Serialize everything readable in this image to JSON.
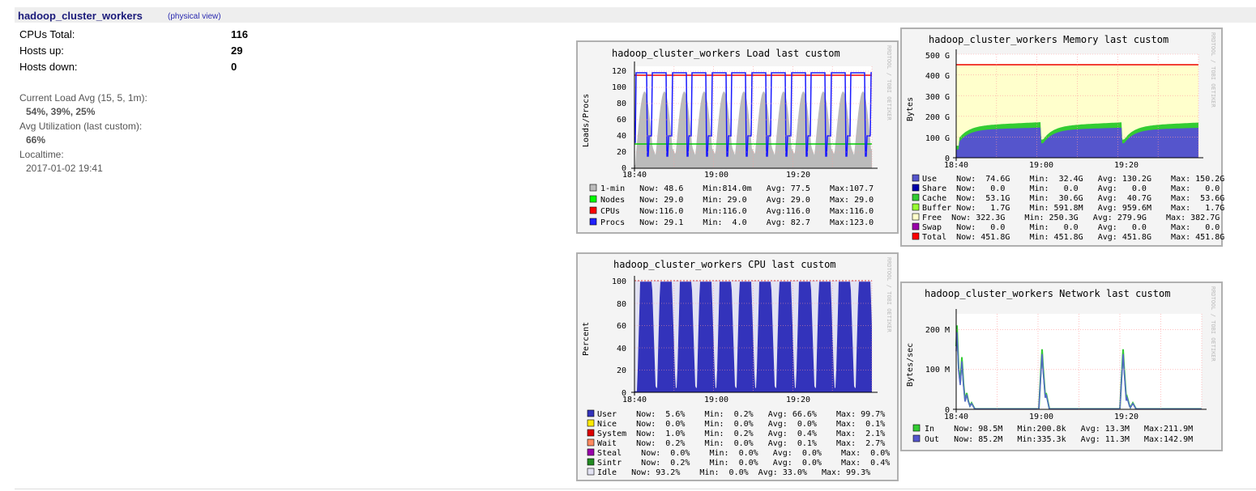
{
  "header": {
    "cluster_name": "hadoop_cluster_workers",
    "view_link": "(physical view)"
  },
  "summary": {
    "cpus_total_label": "CPUs Total:",
    "cpus_total_value": "116",
    "hosts_up_label": "Hosts up:",
    "hosts_up_value": "29",
    "hosts_down_label": "Hosts down:",
    "hosts_down_value": "0"
  },
  "meta": {
    "load_label": "Current Load Avg (15, 5, 1m):",
    "load_value": "54%, 39%, 25%",
    "util_label": "Avg Utilization (last custom):",
    "util_value": "66%",
    "localtime_label": "Localtime:",
    "localtime_value": "2017-01-02 19:41"
  },
  "watermark": "RRDTOOL / TOBI OETIKER",
  "graphs": {
    "load": {
      "title": "hadoop_cluster_workers Load last custom",
      "ylabel": "Loads/Procs",
      "yticks": [
        "0",
        "20",
        "40",
        "60",
        "80",
        "100",
        "120"
      ],
      "xticks": [
        "18:40",
        "19:00",
        "19:20"
      ],
      "legend": [
        {
          "color": "#bbbbbb",
          "text": "1-min   Now: 48.6    Min:814.0m   Avg: 77.5    Max:107.7"
        },
        {
          "color": "#00ff00",
          "text": "Nodes   Now: 29.0    Min: 29.0    Avg: 29.0    Max: 29.0"
        },
        {
          "color": "#ff0000",
          "text": "CPUs    Now:116.0    Min:116.0    Avg:116.0    Max:116.0"
        },
        {
          "color": "#2020ff",
          "text": "Procs   Now: 29.1    Min:  4.0    Avg: 82.7    Max:123.0"
        }
      ]
    },
    "memory": {
      "title": "hadoop_cluster_workers Memory last custom",
      "ylabel": "Bytes",
      "yticks": [
        "0",
        "100 G",
        "200 G",
        "300 G",
        "400 G",
        "500 G"
      ],
      "xticks": [
        "18:40",
        "19:00",
        "19:20"
      ],
      "legend": [
        {
          "color": "#5555cc",
          "text": "Use    Now:  74.6G    Min:  32.4G   Avg: 130.2G    Max: 150.2G"
        },
        {
          "color": "#0000aa",
          "text": "Share  Now:   0.0     Min:   0.0    Avg:   0.0     Max:   0.0"
        },
        {
          "color": "#33cc33",
          "text": "Cache  Now:  53.1G    Min:  30.6G   Avg:  40.7G    Max:  53.6G"
        },
        {
          "color": "#99ff33",
          "text": "Buffer Now:   1.7G    Min: 591.8M   Avg: 959.6M    Max:   1.7G"
        },
        {
          "color": "#ffffcc",
          "text": "Free  Now: 322.3G    Min: 250.3G   Avg: 279.9G    Max: 382.7G"
        },
        {
          "color": "#9900aa",
          "text": "Swap   Now:   0.0     Min:   0.0    Avg:   0.0     Max:   0.0"
        },
        {
          "color": "#ff0000",
          "text": "Total  Now: 451.8G    Min: 451.8G   Avg: 451.8G    Max: 451.8G"
        }
      ]
    },
    "cpu": {
      "title": "hadoop_cluster_workers CPU last custom",
      "ylabel": "Percent",
      "yticks": [
        "0",
        "20",
        "40",
        "60",
        "80",
        "100"
      ],
      "xticks": [
        "18:40",
        "19:00",
        "19:20"
      ],
      "legend": [
        {
          "color": "#3333bb",
          "text": "User    Now:  5.6%    Min:  0.2%   Avg: 66.6%    Max: 99.7%"
        },
        {
          "color": "#ffea00",
          "text": "Nice    Now:  0.0%    Min:  0.0%   Avg:  0.0%    Max:  0.1%"
        },
        {
          "color": "#dd0000",
          "text": "System  Now:  1.0%    Min:  0.2%   Avg:  0.4%    Max:  2.1%"
        },
        {
          "color": "#ff8a60",
          "text": "Wait    Now:  0.2%    Min:  0.0%   Avg:  0.1%    Max:  2.7%"
        },
        {
          "color": "#9900aa",
          "text": "Steal    Now:  0.0%    Min:  0.0%   Avg:  0.0%    Max:  0.0%"
        },
        {
          "color": "#228B22",
          "text": "Sintr    Now:  0.2%    Min:  0.0%   Avg:  0.0%    Max:  0.4%"
        },
        {
          "color": "#e2e2f2",
          "text": "Idle   Now: 93.2%    Min:  0.0%  Avg: 33.0%   Max: 99.3%"
        }
      ]
    },
    "network": {
      "title": "hadoop_cluster_workers Network last custom",
      "ylabel": "Bytes/sec",
      "yticks": [
        "0",
        "100 M",
        "200 M"
      ],
      "xticks": [
        "18:40",
        "19:00",
        "19:20"
      ],
      "legend": [
        {
          "color": "#33cc33",
          "text": "In    Now: 98.5M   Min:200.8k   Avg: 13.3M   Max:211.9M"
        },
        {
          "color": "#5555cc",
          "text": "Out   Now: 85.2M   Min:335.3k   Avg: 11.3M   Max:142.9M"
        }
      ]
    }
  }
}
